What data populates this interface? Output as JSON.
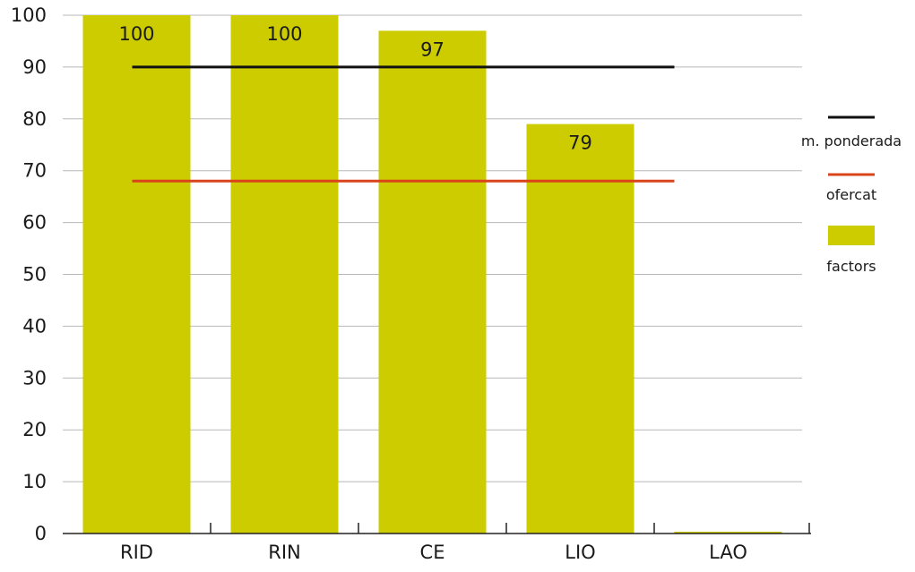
{
  "chart_data": {
    "type": "bar",
    "categories": [
      "RID",
      "RIN",
      "CE",
      "LIO",
      "LAO"
    ],
    "series": [
      {
        "name": "factors",
        "values": [
          100,
          100,
          97,
          79,
          0
        ],
        "color": "#cccc00"
      }
    ],
    "data_labels": [
      "100",
      "100",
      "97",
      "79",
      ""
    ],
    "reference_lines": [
      {
        "name": "m. ponderada",
        "value": 90,
        "color": "#111111"
      },
      {
        "name": "ofercat",
        "value": 68,
        "color": "#d9441a"
      }
    ],
    "yticks": [
      0,
      10,
      20,
      30,
      40,
      50,
      60,
      70,
      80,
      90,
      100
    ],
    "ylim": [
      0,
      100
    ],
    "grid": true,
    "legend_position": "right",
    "title": "",
    "xlabel": "",
    "ylabel": ""
  }
}
